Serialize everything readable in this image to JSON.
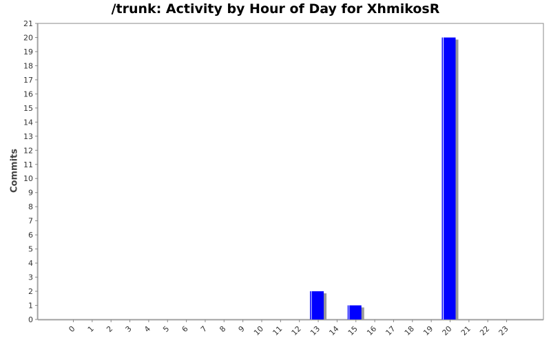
{
  "chart_data": {
    "type": "bar",
    "title": "/trunk: Activity by Hour of Day for XhmikosR",
    "xlabel": "",
    "ylabel": "Commits",
    "categories": [
      "0",
      "1",
      "2",
      "3",
      "4",
      "5",
      "6",
      "7",
      "8",
      "9",
      "10",
      "11",
      "12",
      "13",
      "14",
      "15",
      "16",
      "17",
      "18",
      "19",
      "20",
      "21",
      "22",
      "23"
    ],
    "values": [
      0,
      0,
      0,
      0,
      0,
      0,
      0,
      0,
      0,
      0,
      0,
      0,
      0,
      2,
      0,
      1,
      0,
      0,
      0,
      0,
      20,
      0,
      0,
      0
    ],
    "ylim": [
      0,
      21
    ],
    "yticks": [
      0,
      1,
      2,
      3,
      4,
      5,
      6,
      7,
      8,
      9,
      10,
      11,
      12,
      13,
      14,
      15,
      16,
      17,
      18,
      19,
      20,
      21
    ],
    "grid": false,
    "legend": "none",
    "colors": {
      "bar": "#0000ff",
      "shadow": "#999999",
      "axis": "#888888"
    }
  }
}
